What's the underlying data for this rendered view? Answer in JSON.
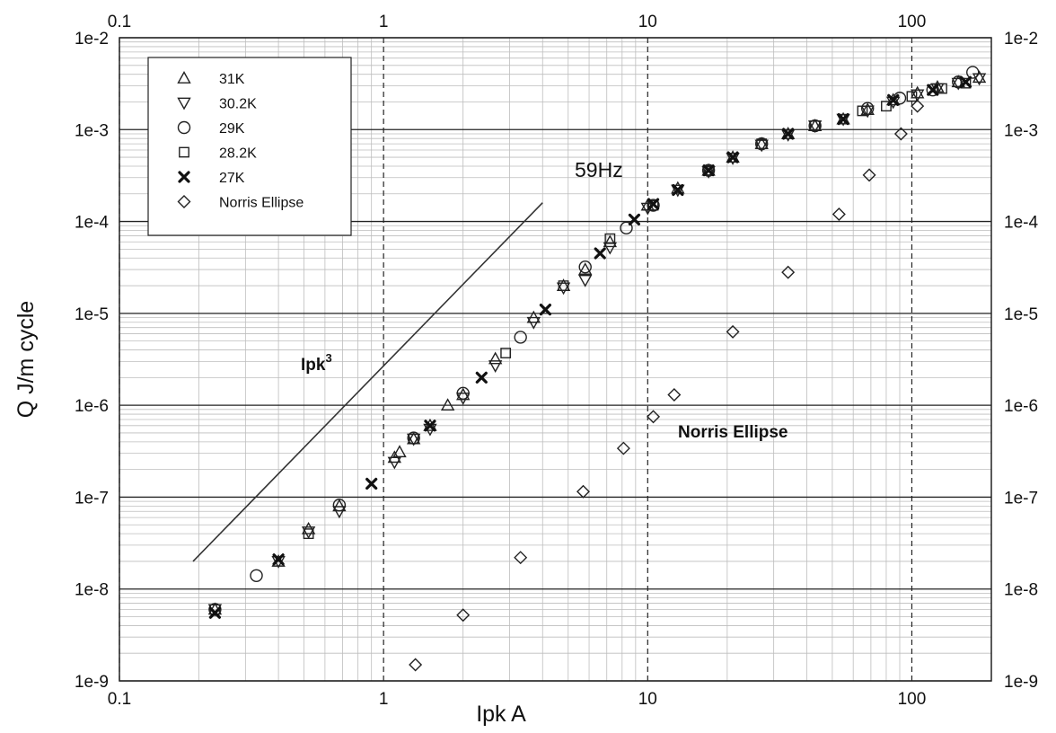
{
  "chart_data": {
    "type": "scatter",
    "xlabel": "Ipk A",
    "ylabel": "Q J/m cycle",
    "x_scale": "log",
    "y_scale": "log",
    "xlim": [
      0.1,
      200
    ],
    "ylim": [
      1e-09,
      0.01
    ],
    "x_ticks": [
      "0.1",
      "1",
      "10",
      "100"
    ],
    "y_ticks": [
      "1e-9",
      "1e-8",
      "1e-7",
      "1e-6",
      "1e-5",
      "1e-4",
      "1e-3",
      "1e-2"
    ],
    "grid": true,
    "legend_position": "top-left",
    "annotations": {
      "frequency": "59Hz",
      "slope_label": "Ipk",
      "slope_exponent": "3",
      "norris_label": "Norris Ellipse"
    },
    "reference_line": {
      "label": "Ipk3",
      "points": [
        [
          0.19,
          2e-08
        ],
        [
          4.0,
          0.00016
        ]
      ]
    },
    "series": [
      {
        "name": "31K",
        "marker": "triangle-up",
        "points": [
          [
            0.23,
            6e-09
          ],
          [
            0.4,
            2e-08
          ],
          [
            0.52,
            4.5e-08
          ],
          [
            0.68,
            8e-08
          ],
          [
            1.1,
            2.7e-07
          ],
          [
            1.15,
            3.1e-07
          ],
          [
            1.3,
            4.3e-07
          ],
          [
            1.5,
            6e-07
          ],
          [
            1.75,
            1e-06
          ],
          [
            2.0,
            1.3e-06
          ],
          [
            2.65,
            3.2e-06
          ],
          [
            3.7,
            9e-06
          ],
          [
            4.8,
            2e-05
          ],
          [
            5.8,
            3e-05
          ],
          [
            7.2,
            6e-05
          ],
          [
            10,
            0.00015
          ],
          [
            13,
            0.00023
          ],
          [
            17,
            0.00036
          ],
          [
            21,
            0.0005
          ],
          [
            27,
            0.0007
          ],
          [
            34,
            0.0009
          ],
          [
            43,
            0.0011
          ],
          [
            55,
            0.0013
          ],
          [
            68,
            0.00165
          ],
          [
            85,
            0.0021
          ],
          [
            105,
            0.0025
          ],
          [
            125,
            0.0029
          ],
          [
            150,
            0.0033
          ],
          [
            180,
            0.0037
          ]
        ]
      },
      {
        "name": "30.2K",
        "marker": "triangle-down",
        "points": [
          [
            0.23,
            6e-09
          ],
          [
            0.4,
            2e-08
          ],
          [
            0.52,
            4.2e-08
          ],
          [
            0.68,
            7e-08
          ],
          [
            1.1,
            2.4e-07
          ],
          [
            1.3,
            4.3e-07
          ],
          [
            1.5,
            5.5e-07
          ],
          [
            2.0,
            1.2e-06
          ],
          [
            2.65,
            2.7e-06
          ],
          [
            3.7,
            8e-06
          ],
          [
            4.8,
            1.9e-05
          ],
          [
            5.8,
            2.3e-05
          ],
          [
            7.2,
            5.2e-05
          ],
          [
            10,
            0.00014
          ],
          [
            13,
            0.00022
          ],
          [
            17,
            0.00035
          ],
          [
            21,
            0.00049
          ],
          [
            27,
            0.00068
          ],
          [
            34,
            0.00088
          ],
          [
            43,
            0.0011
          ],
          [
            55,
            0.0013
          ],
          [
            68,
            0.0016
          ],
          [
            85,
            0.002
          ],
          [
            105,
            0.0024
          ],
          [
            125,
            0.0028
          ],
          [
            150,
            0.0032
          ],
          [
            180,
            0.0036
          ]
        ]
      },
      {
        "name": "29K",
        "marker": "circle",
        "points": [
          [
            0.23,
            6e-09
          ],
          [
            0.33,
            1.4e-08
          ],
          [
            0.68,
            8.2e-08
          ],
          [
            1.3,
            4.4e-07
          ],
          [
            2.0,
            1.35e-06
          ],
          [
            3.3,
            5.5e-06
          ],
          [
            5.8,
            3.2e-05
          ],
          [
            8.3,
            8.5e-05
          ],
          [
            10.5,
            0.00015
          ],
          [
            17,
            0.00036
          ],
          [
            27,
            0.0007
          ],
          [
            43,
            0.0011
          ],
          [
            68,
            0.0017
          ],
          [
            90,
            0.0022
          ],
          [
            120,
            0.0027
          ],
          [
            150,
            0.0033
          ],
          [
            170,
            0.0042
          ]
        ]
      },
      {
        "name": "28.2K",
        "marker": "square",
        "points": [
          [
            0.23,
            6e-09
          ],
          [
            0.52,
            4e-08
          ],
          [
            1.3,
            4.3e-07
          ],
          [
            2.9,
            3.7e-06
          ],
          [
            4.8,
            2e-05
          ],
          [
            7.2,
            6.5e-05
          ],
          [
            10.5,
            0.00015
          ],
          [
            17,
            0.00036
          ],
          [
            27,
            0.0007
          ],
          [
            43,
            0.0011
          ],
          [
            65,
            0.0016
          ],
          [
            80,
            0.0018
          ],
          [
            100,
            0.0023
          ],
          [
            130,
            0.0028
          ],
          [
            160,
            0.0032
          ]
        ]
      },
      {
        "name": "27K",
        "marker": "x",
        "points": [
          [
            0.23,
            5.5e-09
          ],
          [
            0.4,
            2.1e-08
          ],
          [
            0.9,
            1.4e-07
          ],
          [
            1.5,
            6e-07
          ],
          [
            2.35,
            2e-06
          ],
          [
            4.1,
            1.1e-05
          ],
          [
            6.6,
            4.5e-05
          ],
          [
            8.9,
            0.000105
          ],
          [
            10.5,
            0.000155
          ],
          [
            13,
            0.00022
          ],
          [
            17,
            0.00036
          ],
          [
            21,
            0.0005
          ],
          [
            34,
            0.0009
          ],
          [
            55,
            0.0013
          ],
          [
            85,
            0.0021
          ],
          [
            120,
            0.0027
          ],
          [
            160,
            0.0033
          ]
        ]
      },
      {
        "name": "Norris Ellipse",
        "marker": "diamond",
        "points": [
          [
            1.32,
            1.5e-09
          ],
          [
            2.0,
            5.2e-09
          ],
          [
            3.3,
            2.2e-08
          ],
          [
            5.7,
            1.15e-07
          ],
          [
            8.1,
            3.4e-07
          ],
          [
            10.5,
            7.5e-07
          ],
          [
            12.6,
            1.3e-06
          ],
          [
            21,
            6.3e-06
          ],
          [
            34,
            2.8e-05
          ],
          [
            53,
            0.00012
          ],
          [
            69,
            0.00032
          ],
          [
            91,
            0.0009
          ],
          [
            105,
            0.0018
          ]
        ]
      }
    ]
  }
}
